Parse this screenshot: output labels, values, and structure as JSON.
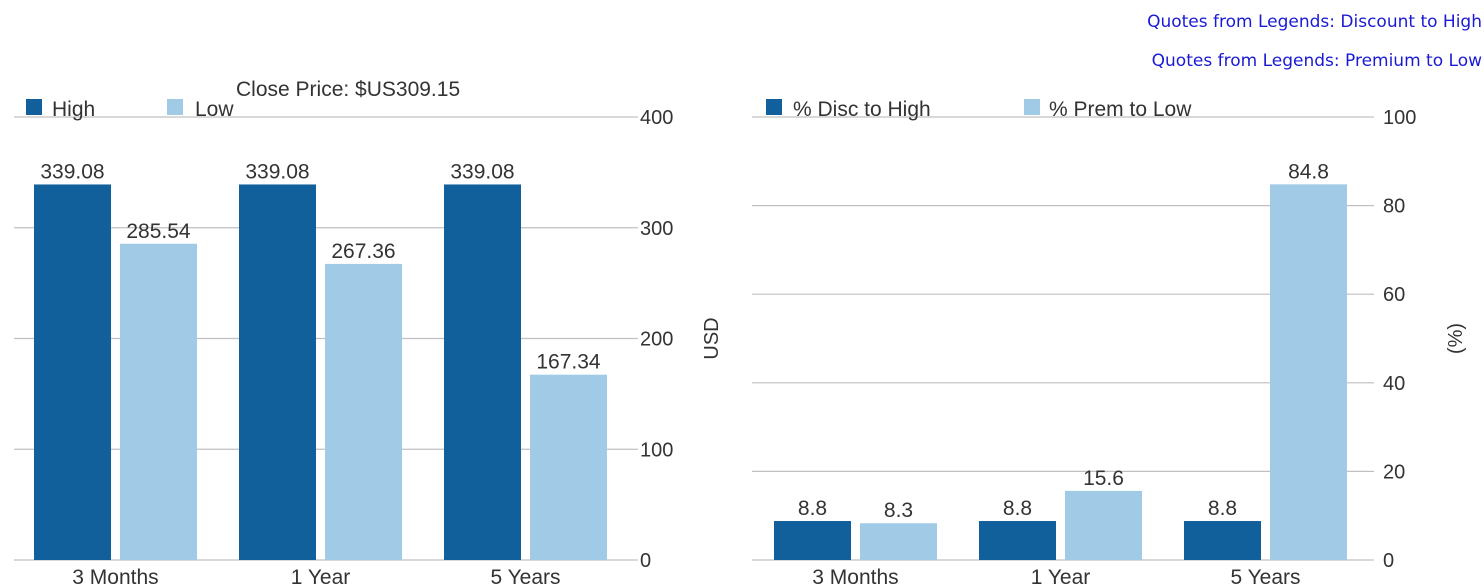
{
  "links": {
    "discount_to_high": "Quotes from Legends: Discount to High",
    "premium_to_low": "Quotes from Legends: Premium to Low"
  },
  "chart_data": [
    {
      "type": "bar",
      "title": "Close Price: $US309.15",
      "categories": [
        "3 Months",
        "1 Year",
        "5 Years"
      ],
      "series": [
        {
          "name": "High",
          "color": "#11609b",
          "values": [
            339.08,
            339.08,
            339.08
          ]
        },
        {
          "name": "Low",
          "color": "#a0cae6",
          "values": [
            285.54,
            267.36,
            167.34
          ]
        }
      ],
      "ylabel": "USD",
      "ylim": [
        0,
        400
      ],
      "yticks": [
        0,
        100,
        200,
        300,
        400
      ],
      "tick_labels": [
        "0",
        "100",
        "200",
        "300",
        "400"
      ],
      "data_labels": [
        [
          "339.08",
          "339.08",
          "339.08"
        ],
        [
          "285.54",
          "267.36",
          "167.34"
        ]
      ],
      "grid": true,
      "legend": "top-left"
    },
    {
      "type": "bar",
      "categories": [
        "3 Months",
        "1 Year",
        "5 Years"
      ],
      "series": [
        {
          "name": "% Disc to High",
          "color": "#11609b",
          "values": [
            8.8,
            8.8,
            8.8
          ]
        },
        {
          "name": "% Prem to Low",
          "color": "#a0cae6",
          "values": [
            8.3,
            15.6,
            84.8
          ]
        }
      ],
      "ylabel": "(%)",
      "ylim": [
        0,
        100
      ],
      "yticks": [
        0,
        20,
        40,
        60,
        80,
        100
      ],
      "tick_labels": [
        "0",
        "20",
        "40",
        "60",
        "80",
        "100"
      ],
      "data_labels": [
        [
          "8.8",
          "8.8",
          "8.8"
        ],
        [
          "8.3",
          "15.6",
          "84.8"
        ]
      ],
      "grid": true,
      "legend": "top-left"
    }
  ]
}
